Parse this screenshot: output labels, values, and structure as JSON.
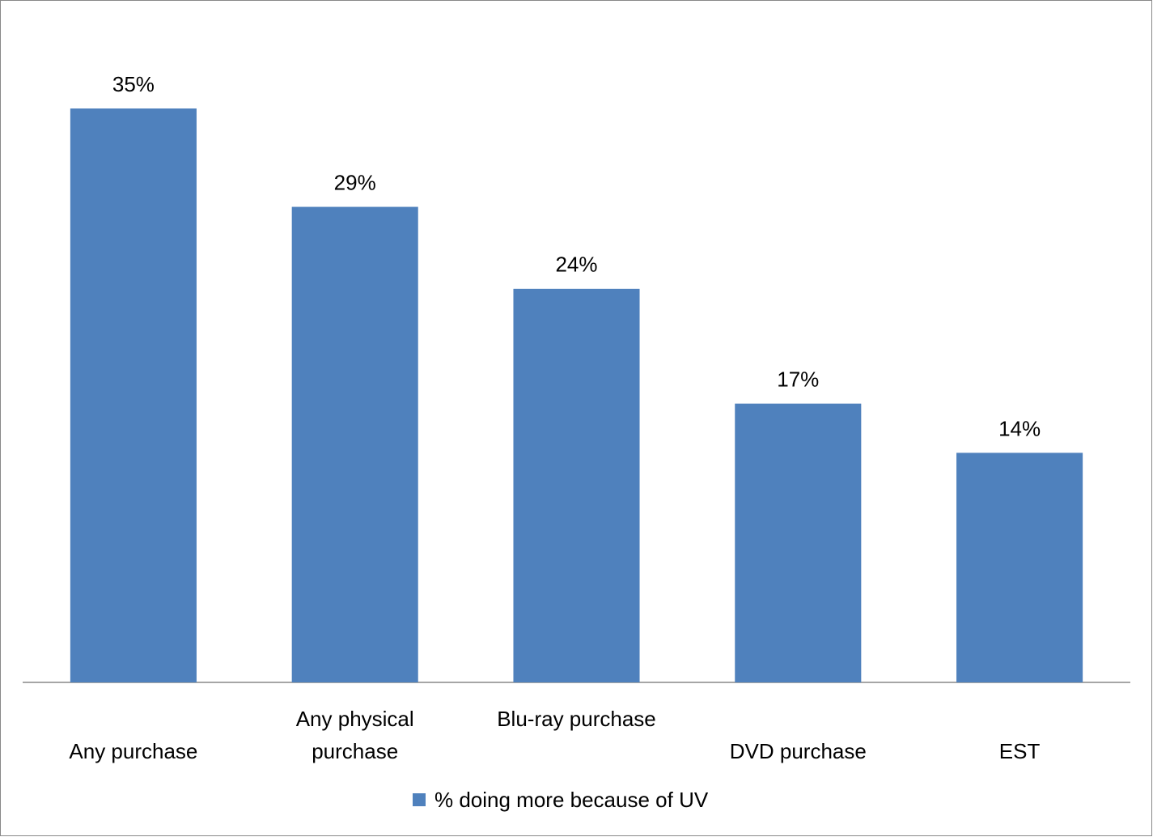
{
  "chart_data": {
    "type": "bar",
    "categories": [
      "Any purchase",
      "Any physical purchase",
      "Blu-ray purchase",
      "DVD purchase",
      "EST"
    ],
    "series": [
      {
        "name": "% doing more because of UV",
        "color": "#4f81bd",
        "values": [
          35,
          29,
          24,
          17,
          14
        ],
        "value_labels": [
          "35%",
          "29%",
          "24%",
          "17%",
          "14%"
        ]
      }
    ],
    "legend": "bottom"
  }
}
